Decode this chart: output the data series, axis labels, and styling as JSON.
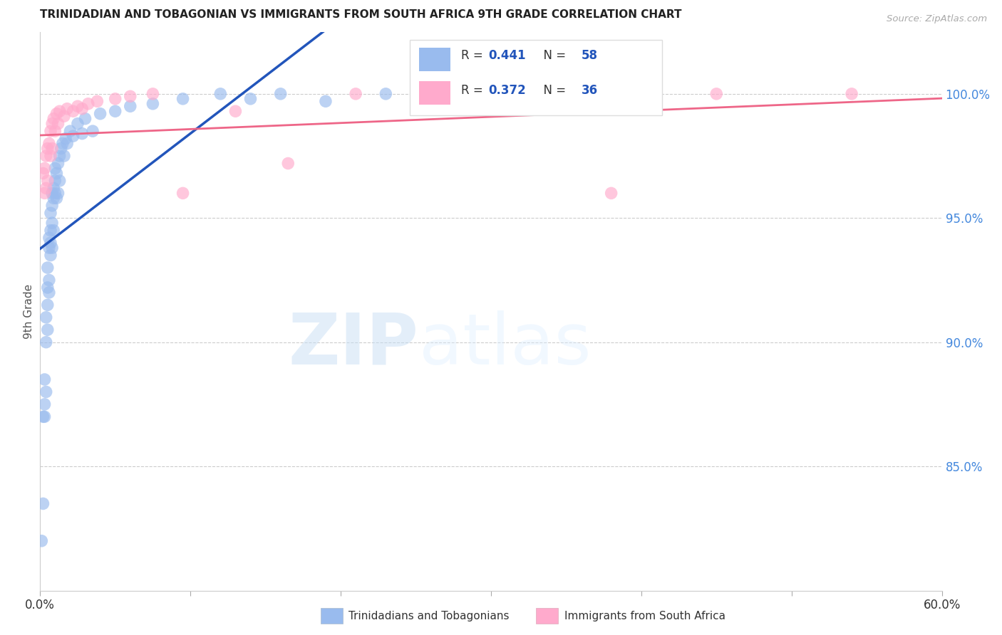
{
  "title": "TRINIDADIAN AND TOBAGONIAN VS IMMIGRANTS FROM SOUTH AFRICA 9TH GRADE CORRELATION CHART",
  "source": "Source: ZipAtlas.com",
  "ylabel": "9th Grade",
  "xlim": [
    0.0,
    0.6
  ],
  "ylim": [
    0.8,
    1.025
  ],
  "x_ticks": [
    0.0,
    0.1,
    0.2,
    0.3,
    0.4,
    0.5,
    0.6
  ],
  "x_tick_labels": [
    "0.0%",
    "",
    "",
    "",
    "",
    "",
    "60.0%"
  ],
  "y_ticks_right": [
    0.85,
    0.9,
    0.95,
    1.0
  ],
  "y_tick_labels_right": [
    "85.0%",
    "90.0%",
    "95.0%",
    "100.0%"
  ],
  "grid_color": "#cccccc",
  "background_color": "#ffffff",
  "blue_color": "#99bbee",
  "pink_color": "#ffaacc",
  "blue_line_color": "#2255bb",
  "pink_line_color": "#ee6688",
  "r_blue": 0.441,
  "n_blue": 58,
  "r_pink": 0.372,
  "n_pink": 36,
  "blue_scatter_x": [
    0.001,
    0.002,
    0.002,
    0.003,
    0.003,
    0.003,
    0.004,
    0.004,
    0.004,
    0.005,
    0.005,
    0.005,
    0.005,
    0.006,
    0.006,
    0.006,
    0.006,
    0.007,
    0.007,
    0.007,
    0.007,
    0.008,
    0.008,
    0.008,
    0.008,
    0.009,
    0.009,
    0.009,
    0.01,
    0.01,
    0.01,
    0.011,
    0.011,
    0.012,
    0.012,
    0.013,
    0.013,
    0.014,
    0.015,
    0.016,
    0.017,
    0.018,
    0.02,
    0.022,
    0.025,
    0.028,
    0.03,
    0.035,
    0.04,
    0.05,
    0.06,
    0.075,
    0.095,
    0.12,
    0.14,
    0.16,
    0.19,
    0.23
  ],
  "blue_scatter_y": [
    0.82,
    0.835,
    0.87,
    0.875,
    0.885,
    0.87,
    0.9,
    0.88,
    0.91,
    0.915,
    0.905,
    0.922,
    0.93,
    0.938,
    0.925,
    0.942,
    0.92,
    0.945,
    0.935,
    0.952,
    0.94,
    0.955,
    0.948,
    0.96,
    0.938,
    0.962,
    0.958,
    0.945,
    0.965,
    0.96,
    0.97,
    0.968,
    0.958,
    0.972,
    0.96,
    0.975,
    0.965,
    0.978,
    0.98,
    0.975,
    0.982,
    0.98,
    0.985,
    0.983,
    0.988,
    0.984,
    0.99,
    0.985,
    0.992,
    0.993,
    0.995,
    0.996,
    0.998,
    1.0,
    0.998,
    1.0,
    0.997,
    1.0
  ],
  "pink_scatter_x": [
    0.002,
    0.003,
    0.003,
    0.004,
    0.004,
    0.005,
    0.005,
    0.006,
    0.007,
    0.007,
    0.008,
    0.008,
    0.009,
    0.01,
    0.011,
    0.012,
    0.013,
    0.016,
    0.018,
    0.022,
    0.025,
    0.028,
    0.032,
    0.038,
    0.05,
    0.06,
    0.075,
    0.095,
    0.13,
    0.165,
    0.21,
    0.26,
    0.31,
    0.38,
    0.45,
    0.54
  ],
  "pink_scatter_y": [
    0.968,
    0.97,
    0.96,
    0.975,
    0.962,
    0.978,
    0.965,
    0.98,
    0.985,
    0.975,
    0.988,
    0.978,
    0.99,
    0.985,
    0.992,
    0.988,
    0.993,
    0.991,
    0.994,
    0.993,
    0.995,
    0.994,
    0.996,
    0.997,
    0.998,
    0.999,
    1.0,
    0.96,
    0.993,
    0.972,
    1.0,
    1.0,
    1.0,
    0.96,
    1.0,
    1.0
  ],
  "watermark_zip": "ZIP",
  "watermark_atlas": "atlas",
  "legend_entries": [
    {
      "label": "R = 0.441   N = 58",
      "color": "#99bbee"
    },
    {
      "label": "R = 0.372   N = 36",
      "color": "#ffaacc"
    }
  ],
  "bottom_legend": [
    {
      "label": "Trinidadians and Tobagonians",
      "color": "#99bbee"
    },
    {
      "label": "Immigrants from South Africa",
      "color": "#ffaacc"
    }
  ]
}
